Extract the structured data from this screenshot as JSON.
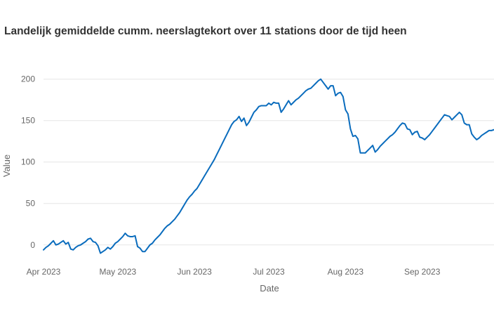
{
  "chart_data": {
    "type": "line",
    "title": "Landelijk gemiddelde cumm. neerslagtekort over 11 stations door de tijd heen",
    "xlabel": "Date",
    "ylabel": "Value",
    "x_tick_labels": [
      "Apr 2023",
      "May 2023",
      "Jun 2023",
      "Jul 2023",
      "Aug 2023",
      "Sep 2023"
    ],
    "y_ticks": [
      0,
      50,
      100,
      150,
      200
    ],
    "xlim": [
      "2023-04-01",
      "2023-09-30"
    ],
    "ylim": [
      -18,
      215
    ],
    "grid": true,
    "legend": "none",
    "line_color": "#0a6cbd",
    "series": [
      {
        "x": [
          "2023-04-01",
          "2023-04-02",
          "2023-04-03",
          "2023-04-04",
          "2023-04-05",
          "2023-04-06",
          "2023-04-07",
          "2023-04-08",
          "2023-04-09",
          "2023-04-10",
          "2023-04-11",
          "2023-04-12",
          "2023-04-13",
          "2023-04-14",
          "2023-04-15",
          "2023-04-16",
          "2023-04-17",
          "2023-04-18",
          "2023-04-19",
          "2023-04-20",
          "2023-04-21",
          "2023-04-22",
          "2023-04-23",
          "2023-04-24",
          "2023-04-25",
          "2023-04-26",
          "2023-04-27",
          "2023-04-28",
          "2023-04-29",
          "2023-04-30",
          "2023-05-01",
          "2023-05-02",
          "2023-05-03",
          "2023-05-04",
          "2023-05-05",
          "2023-05-06",
          "2023-05-07",
          "2023-05-08",
          "2023-05-09",
          "2023-05-10",
          "2023-05-11",
          "2023-05-12",
          "2023-05-13",
          "2023-05-14",
          "2023-05-15",
          "2023-05-16",
          "2023-05-17",
          "2023-05-18",
          "2023-05-19",
          "2023-05-20",
          "2023-05-21",
          "2023-05-22",
          "2023-05-23",
          "2023-05-24",
          "2023-05-25",
          "2023-05-26",
          "2023-05-27",
          "2023-05-28",
          "2023-05-29",
          "2023-05-30",
          "2023-05-31",
          "2023-06-01",
          "2023-06-02",
          "2023-06-03",
          "2023-06-04",
          "2023-06-05",
          "2023-06-06",
          "2023-06-07",
          "2023-06-08",
          "2023-06-09",
          "2023-06-10",
          "2023-06-11",
          "2023-06-12",
          "2023-06-13",
          "2023-06-14",
          "2023-06-15",
          "2023-06-16",
          "2023-06-17",
          "2023-06-18",
          "2023-06-19",
          "2023-06-20",
          "2023-06-21",
          "2023-06-22",
          "2023-06-23",
          "2023-06-24",
          "2023-06-25",
          "2023-06-26",
          "2023-06-27",
          "2023-06-28",
          "2023-06-29",
          "2023-06-30",
          "2023-07-01",
          "2023-07-02",
          "2023-07-03",
          "2023-07-04",
          "2023-07-05",
          "2023-07-06",
          "2023-07-07",
          "2023-07-08",
          "2023-07-09",
          "2023-07-10",
          "2023-07-11",
          "2023-07-12",
          "2023-07-13",
          "2023-07-14",
          "2023-07-15",
          "2023-07-16",
          "2023-07-17",
          "2023-07-18",
          "2023-07-19",
          "2023-07-20",
          "2023-07-21",
          "2023-07-22",
          "2023-07-23",
          "2023-07-24",
          "2023-07-25",
          "2023-07-26",
          "2023-07-27",
          "2023-07-28",
          "2023-07-29",
          "2023-07-30",
          "2023-07-31",
          "2023-08-01",
          "2023-08-02",
          "2023-08-03",
          "2023-08-04",
          "2023-08-05",
          "2023-08-06",
          "2023-08-07",
          "2023-08-08",
          "2023-08-09",
          "2023-08-10",
          "2023-08-11",
          "2023-08-12",
          "2023-08-13",
          "2023-08-14",
          "2023-08-15",
          "2023-08-16",
          "2023-08-17",
          "2023-08-18",
          "2023-08-19",
          "2023-08-20",
          "2023-08-21",
          "2023-08-22",
          "2023-08-23",
          "2023-08-24",
          "2023-08-25",
          "2023-08-26",
          "2023-08-27",
          "2023-08-28",
          "2023-08-29",
          "2023-08-30",
          "2023-08-31",
          "2023-09-01",
          "2023-09-02",
          "2023-09-03",
          "2023-09-04",
          "2023-09-05",
          "2023-09-06",
          "2023-09-07",
          "2023-09-08",
          "2023-09-09",
          "2023-09-10",
          "2023-09-11",
          "2023-09-12",
          "2023-09-13",
          "2023-09-14",
          "2023-09-15",
          "2023-09-16",
          "2023-09-17",
          "2023-09-18",
          "2023-09-19",
          "2023-09-20",
          "2023-09-21",
          "2023-09-22",
          "2023-09-23",
          "2023-09-24",
          "2023-09-25",
          "2023-09-26",
          "2023-09-27",
          "2023-09-28",
          "2023-09-29",
          "2023-09-30"
        ],
        "y": [
          -6,
          -3,
          -1,
          2,
          5,
          0,
          1,
          3,
          5,
          1,
          3,
          -5,
          -6,
          -3,
          -1,
          0,
          2,
          4,
          7,
          8,
          4,
          3,
          -1,
          -10,
          -8,
          -6,
          -3,
          -5,
          -2,
          2,
          4,
          7,
          10,
          14,
          11,
          10,
          10,
          11,
          -2,
          -4,
          -8,
          -8,
          -4,
          0,
          2,
          6,
          9,
          12,
          16,
          20,
          23,
          25,
          28,
          31,
          35,
          39,
          44,
          49,
          54,
          58,
          61,
          65,
          68,
          73,
          78,
          83,
          88,
          93,
          98,
          103,
          109,
          115,
          121,
          127,
          133,
          139,
          145,
          149,
          151,
          155,
          149,
          153,
          144,
          148,
          154,
          160,
          163,
          167,
          168,
          168,
          168,
          171,
          169,
          172,
          171,
          171,
          160,
          164,
          169,
          174,
          169,
          172,
          175,
          177,
          180,
          183,
          186,
          188,
          189,
          192,
          195,
          198,
          200,
          196,
          192,
          188,
          192,
          192,
          180,
          183,
          184,
          179,
          163,
          158,
          140,
          131,
          132,
          128,
          111,
          111,
          111,
          114,
          117,
          120,
          112,
          115,
          119,
          122,
          125,
          128,
          131,
          133,
          136,
          140,
          144,
          147,
          146,
          140,
          139,
          133,
          136,
          137,
          130,
          129,
          127,
          130,
          133,
          137,
          141,
          145,
          149,
          153,
          157,
          156,
          155,
          151,
          154,
          157,
          160,
          157,
          147,
          145,
          145,
          134,
          130,
          127,
          129,
          132,
          134,
          136,
          138,
          138,
          139
        ]
      }
    ]
  }
}
